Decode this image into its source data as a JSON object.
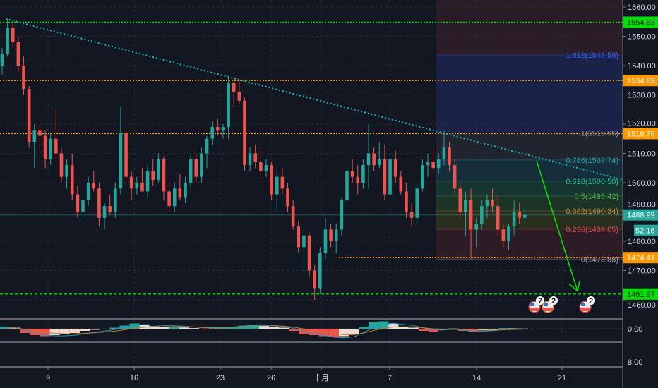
{
  "chart_data": {
    "type": "candlestick",
    "title": "",
    "price_axis": {
      "ticks": [
        "1560.00",
        "1550.00",
        "1540.00",
        "1530.00",
        "1520.00",
        "1510.00",
        "1500.00",
        "1490.00",
        "1480.00",
        "1470.00",
        "1460.00"
      ],
      "ylim": [
        1456,
        1562
      ]
    },
    "time_axis": {
      "ticks": [
        "9",
        "16",
        "23",
        "26",
        "十月",
        "7",
        "14",
        "21"
      ]
    },
    "grid": true,
    "colors": {
      "background": "#131722",
      "up": "#26a69a",
      "down": "#ef5350",
      "grid": "#2a2e39",
      "trendline": "#22b5bf",
      "support_green": "#00e100",
      "level_orange": "#ff9800",
      "arrow": "#00e100",
      "price_line": "#26a69a"
    },
    "candles_ohlc": [
      [
        1540,
        1546,
        1537,
        1544
      ],
      [
        1544,
        1556,
        1543,
        1553
      ],
      [
        1553,
        1555,
        1546,
        1548
      ],
      [
        1548,
        1550,
        1538,
        1540
      ],
      [
        1540,
        1543,
        1530,
        1532
      ],
      [
        1532,
        1533,
        1512,
        1514
      ],
      [
        1514,
        1520,
        1505,
        1518
      ],
      [
        1518,
        1520,
        1512,
        1516
      ],
      [
        1516,
        1518,
        1505,
        1508
      ],
      [
        1508,
        1517,
        1506,
        1515
      ],
      [
        1515,
        1525,
        1508,
        1510
      ],
      [
        1510,
        1512,
        1500,
        1502
      ],
      [
        1502,
        1508,
        1498,
        1506
      ],
      [
        1506,
        1510,
        1494,
        1496
      ],
      [
        1496,
        1499,
        1488,
        1490
      ],
      [
        1490,
        1496,
        1487,
        1494
      ],
      [
        1494,
        1502,
        1492,
        1500
      ],
      [
        1500,
        1504,
        1497,
        1498
      ],
      [
        1498,
        1500,
        1485,
        1488
      ],
      [
        1488,
        1493,
        1484,
        1492
      ],
      [
        1492,
        1496,
        1489,
        1490
      ],
      [
        1490,
        1500,
        1488,
        1498
      ],
      [
        1498,
        1526,
        1496,
        1517
      ],
      [
        1517,
        1518,
        1500,
        1502
      ],
      [
        1502,
        1504,
        1494,
        1498
      ],
      [
        1498,
        1502,
        1496,
        1500
      ],
      [
        1500,
        1505,
        1497,
        1497
      ],
      [
        1497,
        1506,
        1495,
        1504
      ],
      [
        1504,
        1508,
        1499,
        1501
      ],
      [
        1501,
        1510,
        1500,
        1508
      ],
      [
        1508,
        1509,
        1494,
        1497
      ],
      [
        1497,
        1500,
        1490,
        1492
      ],
      [
        1492,
        1500,
        1490,
        1498
      ],
      [
        1498,
        1503,
        1494,
        1495
      ],
      [
        1495,
        1502,
        1493,
        1500
      ],
      [
        1500,
        1510,
        1498,
        1508
      ],
      [
        1508,
        1510,
        1500,
        1502
      ],
      [
        1502,
        1512,
        1500,
        1510
      ],
      [
        1510,
        1516,
        1505,
        1515
      ],
      [
        1515,
        1521,
        1513,
        1519
      ],
      [
        1519,
        1522,
        1516,
        1518
      ],
      [
        1518,
        1520,
        1515,
        1519
      ],
      [
        1519,
        1536,
        1515,
        1534
      ],
      [
        1534,
        1536,
        1526,
        1531
      ],
      [
        1531,
        1535,
        1527,
        1528
      ],
      [
        1528,
        1529,
        1504,
        1506
      ],
      [
        1506,
        1512,
        1504,
        1510
      ],
      [
        1510,
        1513,
        1505,
        1507
      ],
      [
        1507,
        1512,
        1502,
        1504
      ],
      [
        1504,
        1508,
        1502,
        1506
      ],
      [
        1506,
        1507,
        1494,
        1496
      ],
      [
        1496,
        1504,
        1490,
        1502
      ],
      [
        1502,
        1505,
        1496,
        1498
      ],
      [
        1498,
        1500,
        1490,
        1492
      ],
      [
        1492,
        1494,
        1484,
        1485
      ],
      [
        1485,
        1487,
        1476,
        1478
      ],
      [
        1478,
        1484,
        1468,
        1482
      ],
      [
        1482,
        1483,
        1468,
        1470
      ],
      [
        1470,
        1472,
        1460,
        1464
      ],
      [
        1464,
        1478,
        1462,
        1476
      ],
      [
        1476,
        1488,
        1474,
        1484
      ],
      [
        1484,
        1486,
        1478,
        1480
      ],
      [
        1480,
        1486,
        1476,
        1484
      ],
      [
        1484,
        1495,
        1482,
        1494
      ],
      [
        1494,
        1506,
        1492,
        1504
      ],
      [
        1504,
        1508,
        1500,
        1502
      ],
      [
        1502,
        1506,
        1496,
        1500
      ],
      [
        1500,
        1508,
        1498,
        1506
      ],
      [
        1506,
        1520,
        1498,
        1510
      ],
      [
        1510,
        1512,
        1504,
        1506
      ],
      [
        1506,
        1514,
        1505,
        1508
      ],
      [
        1508,
        1513,
        1494,
        1496
      ],
      [
        1496,
        1510,
        1495,
        1508
      ],
      [
        1508,
        1511,
        1500,
        1502
      ],
      [
        1502,
        1504,
        1496,
        1497
      ],
      [
        1497,
        1500,
        1488,
        1490
      ],
      [
        1490,
        1493,
        1485,
        1488
      ],
      [
        1488,
        1500,
        1486,
        1498
      ],
      [
        1498,
        1508,
        1497,
        1506
      ],
      [
        1506,
        1510,
        1502,
        1507
      ],
      [
        1507,
        1512,
        1504,
        1505
      ],
      [
        1505,
        1510,
        1503,
        1508
      ],
      [
        1508,
        1518,
        1506,
        1512
      ],
      [
        1512,
        1514,
        1504,
        1506
      ],
      [
        1506,
        1508,
        1496,
        1498
      ],
      [
        1498,
        1500,
        1488,
        1490
      ],
      [
        1490,
        1497,
        1482,
        1494
      ],
      [
        1494,
        1498,
        1474,
        1484
      ],
      [
        1484,
        1488,
        1478,
        1486
      ],
      [
        1486,
        1494,
        1484,
        1492
      ],
      [
        1492,
        1496,
        1488,
        1494
      ],
      [
        1494,
        1498,
        1490,
        1492
      ],
      [
        1492,
        1496,
        1482,
        1484
      ],
      [
        1484,
        1486,
        1478,
        1480
      ],
      [
        1480,
        1486,
        1477,
        1485
      ],
      [
        1485,
        1494,
        1482,
        1490
      ],
      [
        1490,
        1493,
        1486,
        1488
      ],
      [
        1488,
        1492,
        1486,
        1489
      ]
    ],
    "horizontal_levels": [
      {
        "price": 1554.83,
        "label": "1554.83",
        "color": "#00e100",
        "style": "dotted"
      },
      {
        "price": 1534.89,
        "label": "1534.89",
        "color": "#ff9800",
        "style": "dotted"
      },
      {
        "price": 1516.76,
        "label": "1516.76",
        "color": "#ff9800",
        "style": "dotted"
      },
      {
        "price": 1474.41,
        "label": "1474.41",
        "color": "#ff9800",
        "style": "dotted"
      },
      {
        "price": 1461.97,
        "label": "1461.97",
        "color": "#00e100",
        "style": "dashed"
      }
    ],
    "current_price": {
      "label": "1488.99",
      "price": 1488.99,
      "countdown": "52:16"
    },
    "trendline": {
      "from_price": 1556,
      "to_price": 1501
    },
    "fibonacci": [
      {
        "label": "1.618(1543.58)",
        "price": 1543.58,
        "color": "#2962ff",
        "fill": "#1b2248"
      },
      {
        "label": "1(1516.96)",
        "price": 1516.96,
        "color": "#9598a1",
        "fill": "#20242e"
      },
      {
        "label": "0.786(1507.74)",
        "price": 1507.74,
        "color": "#26a0b2",
        "fill": "#152e3a"
      },
      {
        "label": "0.618(1500.50)",
        "price": 1500.5,
        "color": "#22c08e",
        "fill": "#163430"
      },
      {
        "label": "0.5(1495.42)",
        "price": 1495.42,
        "color": "#4caf50",
        "fill": "#1b3426"
      },
      {
        "label": "0.382(1490.34)",
        "price": 1490.34,
        "color": "#c08a30",
        "fill": "#2a2e1f"
      },
      {
        "label": "0.236(1484.05)",
        "price": 1484.05,
        "color": "#e0474c",
        "fill": "#2d1c25"
      },
      {
        "label": "0(1473.88)",
        "price": 1473.88,
        "color": "#9598a1",
        "fill": null
      }
    ],
    "fib_top_fill": "#2a1d28",
    "arrow": {
      "from_price": 1507.5,
      "to_price": 1463
    },
    "events": [
      {
        "badge": "7"
      },
      {
        "badge": "2"
      },
      {
        "badge": "2"
      }
    ],
    "macd": {
      "zero_label": "0.00",
      "lower_label": "8.00",
      "histogram": [
        1,
        0.5,
        -2,
        -3,
        -3.5,
        -3,
        -2.5,
        -2,
        -1,
        -0.5,
        -0.2,
        0.5,
        1.5,
        2.5,
        2,
        1.2,
        0.8,
        1,
        0.6,
        0.3,
        -0.3,
        0.4,
        0.6,
        1,
        1.5,
        2,
        1.5,
        0.8,
        0.5,
        -1,
        -2.5,
        -3,
        -3.5,
        -4,
        -3.5,
        -2.5,
        1,
        3,
        3.5,
        2.5,
        1,
        0.5,
        -1,
        -1.5,
        -0.5,
        0.2,
        -1,
        -1.5,
        -0.8,
        -0.5,
        0.3,
        0.2,
        0.1
      ]
    }
  }
}
